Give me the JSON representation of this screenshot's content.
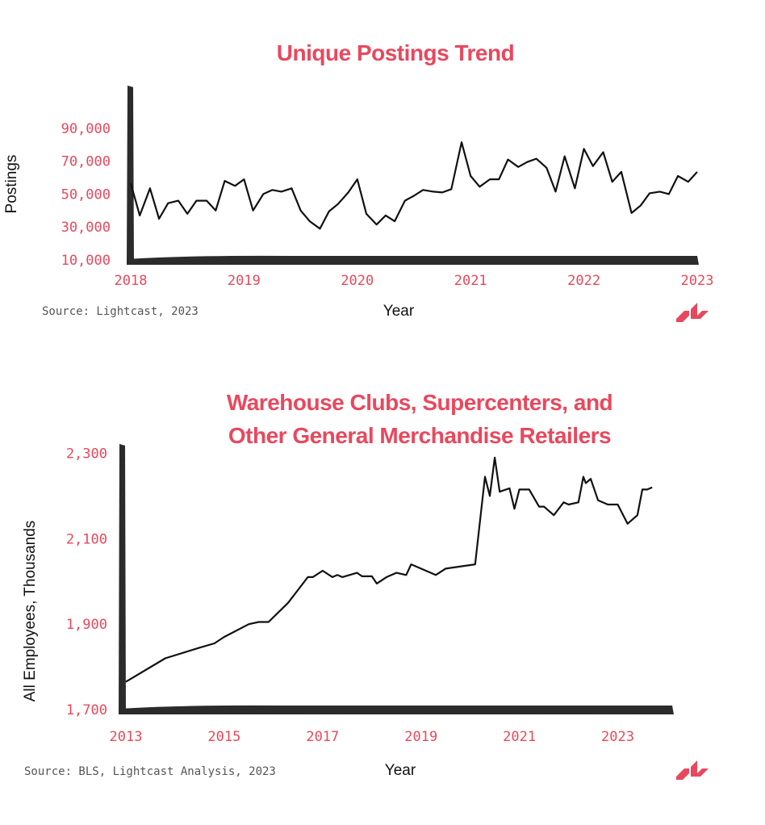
{
  "chart_data": [
    {
      "type": "line",
      "title": "Unique Postings Trend",
      "xlabel": "Year",
      "ylabel": "Postings",
      "source": "Source: Lightcast, 2023",
      "xlim": [
        2018,
        2023
      ],
      "ylim": [
        10000,
        100000
      ],
      "y_ticks": [
        {
          "value": 10000,
          "label": "10,000"
        },
        {
          "value": 30000,
          "label": "30,000"
        },
        {
          "value": 50000,
          "label": "50,000"
        },
        {
          "value": 70000,
          "label": "70,000"
        },
        {
          "value": 90000,
          "label": "90,000"
        }
      ],
      "x_ticks": [
        {
          "value": 2018,
          "label": "2018"
        },
        {
          "value": 2019,
          "label": "2019"
        },
        {
          "value": 2020,
          "label": "2020"
        },
        {
          "value": 2021,
          "label": "2021"
        },
        {
          "value": 2022,
          "label": "2022"
        },
        {
          "value": 2023,
          "label": "2023"
        }
      ],
      "line_color": "#111111",
      "grid": false,
      "x": [
        2018.0,
        2018.08,
        2018.17,
        2018.25,
        2018.33,
        2018.42,
        2018.5,
        2018.58,
        2018.67,
        2018.75,
        2018.83,
        2018.92,
        2019.0,
        2019.08,
        2019.17,
        2019.25,
        2019.33,
        2019.42,
        2019.5,
        2019.58,
        2019.67,
        2019.75,
        2019.83,
        2019.92,
        2020.0,
        2020.08,
        2020.17,
        2020.25,
        2020.33,
        2020.42,
        2020.5,
        2020.58,
        2020.67,
        2020.75,
        2020.83,
        2020.92,
        2021.0,
        2021.08,
        2021.17,
        2021.25,
        2021.33,
        2021.42,
        2021.5,
        2021.58,
        2021.67,
        2021.75,
        2021.83,
        2021.92,
        2022.0,
        2022.08,
        2022.17,
        2022.25,
        2022.33,
        2022.42,
        2022.5,
        2022.58,
        2022.67,
        2022.75,
        2022.83,
        2022.92,
        2023.0
      ],
      "y": [
        56500,
        37000,
        53500,
        35000,
        44500,
        46000,
        38000,
        46000,
        46000,
        40000,
        58000,
        55000,
        59000,
        40000,
        50000,
        52500,
        51500,
        53500,
        40000,
        33500,
        29000,
        39500,
        44000,
        51000,
        59000,
        38000,
        31500,
        37000,
        33500,
        46000,
        49000,
        52500,
        51500,
        51000,
        53000,
        81500,
        61000,
        54500,
        59000,
        59000,
        71000,
        66500,
        69500,
        71500,
        66000,
        51500,
        73000,
        53500,
        77500,
        67000,
        75500,
        57500,
        63500,
        38500,
        43000,
        50500,
        51500,
        50000,
        61000,
        57500,
        63500
      ]
    },
    {
      "type": "line",
      "title_line1": "Warehouse Clubs, Supercenters, and",
      "title_line2": "Other General Merchandise Retailers",
      "xlabel": "Year",
      "ylabel": "All Employees, Thousands",
      "source": "Source: BLS, Lightcast Analysis, 2023",
      "xlim": [
        2013,
        2023.5
      ],
      "ylim": [
        1700,
        2350
      ],
      "y_ticks": [
        {
          "value": 1700,
          "label": "1,700"
        },
        {
          "value": 1900,
          "label": "1,900"
        },
        {
          "value": 2100,
          "label": "2,100"
        },
        {
          "value": 2300,
          "label": "2,300"
        }
      ],
      "x_ticks": [
        {
          "value": 2013,
          "label": "2013"
        },
        {
          "value": 2015,
          "label": "2015"
        },
        {
          "value": 2017,
          "label": "2017"
        },
        {
          "value": 2019,
          "label": "2019"
        },
        {
          "value": 2021,
          "label": "2021"
        },
        {
          "value": 2023,
          "label": "2023"
        }
      ],
      "line_color": "#111111",
      "grid": false,
      "x": [
        2013.0,
        2013.8,
        2014.5,
        2014.8,
        2015.0,
        2015.5,
        2015.7,
        2015.9,
        2016.3,
        2016.7,
        2016.8,
        2017.0,
        2017.2,
        2017.3,
        2017.4,
        2017.7,
        2017.8,
        2018.0,
        2018.1,
        2018.3,
        2018.5,
        2018.7,
        2018.8,
        2019.0,
        2019.3,
        2019.5,
        2020.1,
        2020.3,
        2020.4,
        2020.5,
        2020.6,
        2020.8,
        2020.9,
        2021.0,
        2021.2,
        2021.4,
        2021.5,
        2021.7,
        2021.9,
        2022.0,
        2022.2,
        2022.3,
        2022.35,
        2022.45,
        2022.6,
        2022.8,
        2023.0,
        2023.2,
        2023.4,
        2023.5,
        2023.6,
        2023.7
      ],
      "y": [
        1765,
        1820,
        1845,
        1855,
        1870,
        1900,
        1905,
        1905,
        1950,
        2010,
        2010,
        2025,
        2010,
        2015,
        2010,
        2020,
        2012,
        2012,
        1995,
        2010,
        2020,
        2015,
        2040,
        2030,
        2015,
        2030,
        2040,
        2245,
        2200,
        2290,
        2210,
        2218,
        2170,
        2215,
        2215,
        2175,
        2175,
        2155,
        2185,
        2180,
        2185,
        2245,
        2230,
        2240,
        2190,
        2180,
        2180,
        2135,
        2155,
        2215,
        2215,
        2220
      ]
    }
  ]
}
